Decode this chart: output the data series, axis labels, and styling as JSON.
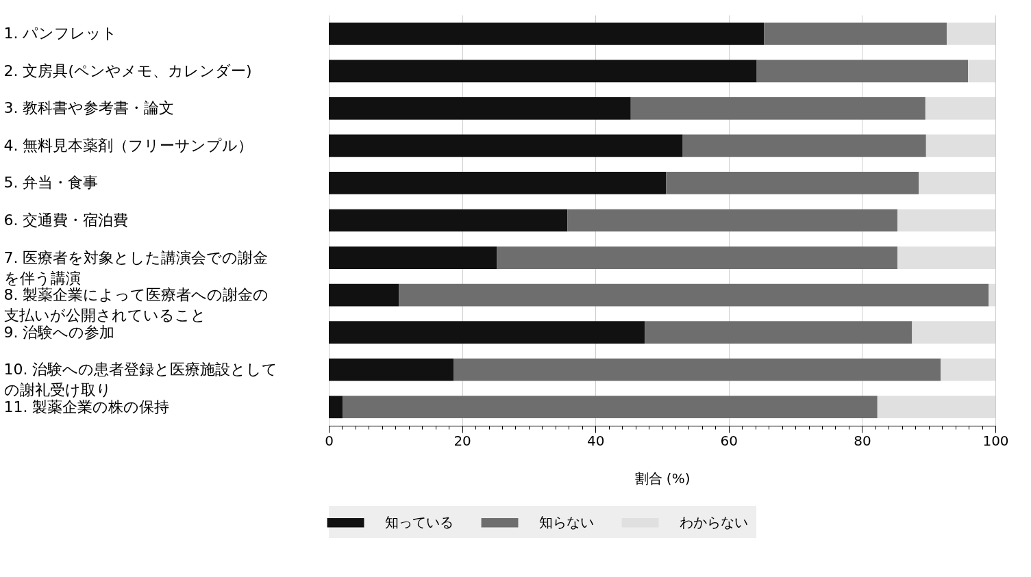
{
  "chart_data": {
    "type": "bar",
    "orientation": "horizontal",
    "stacked": true,
    "categories": [
      "1.  パンフレット",
      "2.  文房具(ペンやメモ、カレンダー)",
      "3.  教科書や参考書・論文",
      "4.  無料見本薬剤（フリーサンプル）",
      "5.  弁当・食事",
      "6.  交通費・宿泊費",
      "7.  医療者を対象とした講演会での謝金を伴う講演",
      "8.  製薬企業によって医療者への謝金の支払いが公開されていること",
      "9.  治験への参加",
      "10. 治験への患者登録と医療施設としての謝礼受け取り",
      "11.  製薬企業の株の保持"
    ],
    "series": [
      {
        "name": "知っている",
        "color": "#111111",
        "values": [
          65.3,
          64.2,
          45.3,
          53.1,
          50.6,
          35.8,
          25.2,
          10.5,
          47.4,
          18.7,
          2.1
        ]
      },
      {
        "name": "知らない",
        "color": "#6e6e6e",
        "values": [
          27.4,
          31.7,
          44.2,
          36.5,
          37.9,
          49.5,
          60.1,
          88.5,
          40.1,
          73.1,
          80.2
        ]
      },
      {
        "name": "わからない",
        "color": "#e0e0e0",
        "values": [
          7.3,
          4.1,
          10.5,
          10.4,
          11.5,
          14.7,
          14.7,
          1.0,
          12.5,
          8.2,
          17.7
        ]
      }
    ],
    "xlabel": "割合 (%)",
    "xlim": [
      0,
      100
    ],
    "xticks": [
      0,
      {
        "value": 2,
        "label": null
      },
      {
        "value": 4,
        "label": null
      },
      {
        "value": 6,
        "label": null
      },
      {
        "value": 8,
        "label": null
      },
      {
        "value": 10,
        "label": null
      },
      {
        "value": 12,
        "label": null
      },
      {
        "value": 14,
        "label": null
      },
      {
        "value": 16,
        "label": null
      },
      {
        "value": 18,
        "label": null
      },
      20,
      {
        "value": 22,
        "label": null
      },
      {
        "value": 24,
        "label": null
      },
      {
        "value": 26,
        "label": null
      },
      {
        "value": 28,
        "label": null
      },
      {
        "value": 30,
        "label": null
      },
      {
        "value": 32,
        "label": null
      },
      {
        "value": 34,
        "label": null
      },
      {
        "value": 36,
        "label": null
      },
      {
        "value": 38,
        "label": null
      },
      40,
      {
        "value": 42,
        "label": null
      },
      {
        "value": 44,
        "label": null
      },
      {
        "value": 46,
        "label": null
      },
      {
        "value": 48,
        "label": null
      },
      {
        "value": 50,
        "label": null
      },
      {
        "value": 52,
        "label": null
      },
      {
        "value": 54,
        "label": null
      },
      {
        "value": 56,
        "label": null
      },
      {
        "value": 58,
        "label": null
      },
      60,
      {
        "value": 62,
        "label": null
      },
      {
        "value": 64,
        "label": null
      },
      {
        "value": 66,
        "label": null
      },
      {
        "value": 68,
        "label": null
      },
      {
        "value": 70,
        "label": null
      },
      {
        "value": 72,
        "label": null
      },
      {
        "value": 74,
        "label": null
      },
      {
        "value": 76,
        "label": null
      },
      {
        "value": 78,
        "label": null
      },
      80,
      {
        "value": 82,
        "label": null
      },
      {
        "value": 84,
        "label": null
      },
      {
        "value": 86,
        "label": null
      },
      {
        "value": 88,
        "label": null
      },
      {
        "value": 90,
        "label": null
      },
      {
        "value": 92,
        "label": null
      },
      {
        "value": 94,
        "label": null
      },
      {
        "value": 96,
        "label": null
      },
      {
        "value": 98,
        "label": null
      },
      100
    ],
    "grid": "x",
    "legend": "bottom"
  }
}
